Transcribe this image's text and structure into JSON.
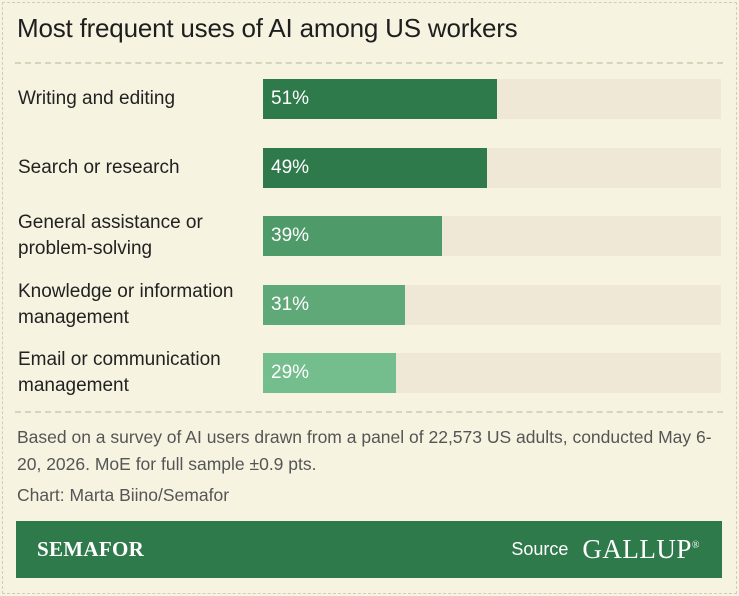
{
  "chart_data": {
    "type": "bar",
    "orientation": "horizontal",
    "title": "Most frequent uses of AI among US workers",
    "categories": [
      "Writing and editing",
      "Search or research",
      "General assistance or problem-solving",
      "Knowledge or information management",
      "Email or communication management"
    ],
    "label_lines": [
      [
        "Writing and editing"
      ],
      [
        "Search or research"
      ],
      [
        "General assistance or",
        "problem-solving"
      ],
      [
        "Knowledge or information",
        "management"
      ],
      [
        "Email or communication",
        "management"
      ]
    ],
    "values": [
      51,
      49,
      39,
      31,
      29
    ],
    "value_labels": [
      "51%",
      "49%",
      "39%",
      "31%",
      "29%"
    ],
    "bar_colors": [
      "#2f7a4b",
      "#2f7a4b",
      "#4e9a68",
      "#5fa878",
      "#74bd8d"
    ],
    "track_color": "#efe8d6",
    "xlim": [
      0,
      100
    ],
    "unit": "%",
    "grid": false,
    "legend": "none"
  },
  "note": "Based on a survey of AI users drawn from a panel of 22,573 US adults, conducted May 6-20, 2026. MoE for full sample ±0.9 pts.",
  "credit": "Chart: Marta Biino/Semafor",
  "footer": {
    "brand": "SEMAFOR",
    "source_label": "Source",
    "source_name": "GALLUP",
    "source_mark": "®",
    "background": "#2f7a4b"
  }
}
